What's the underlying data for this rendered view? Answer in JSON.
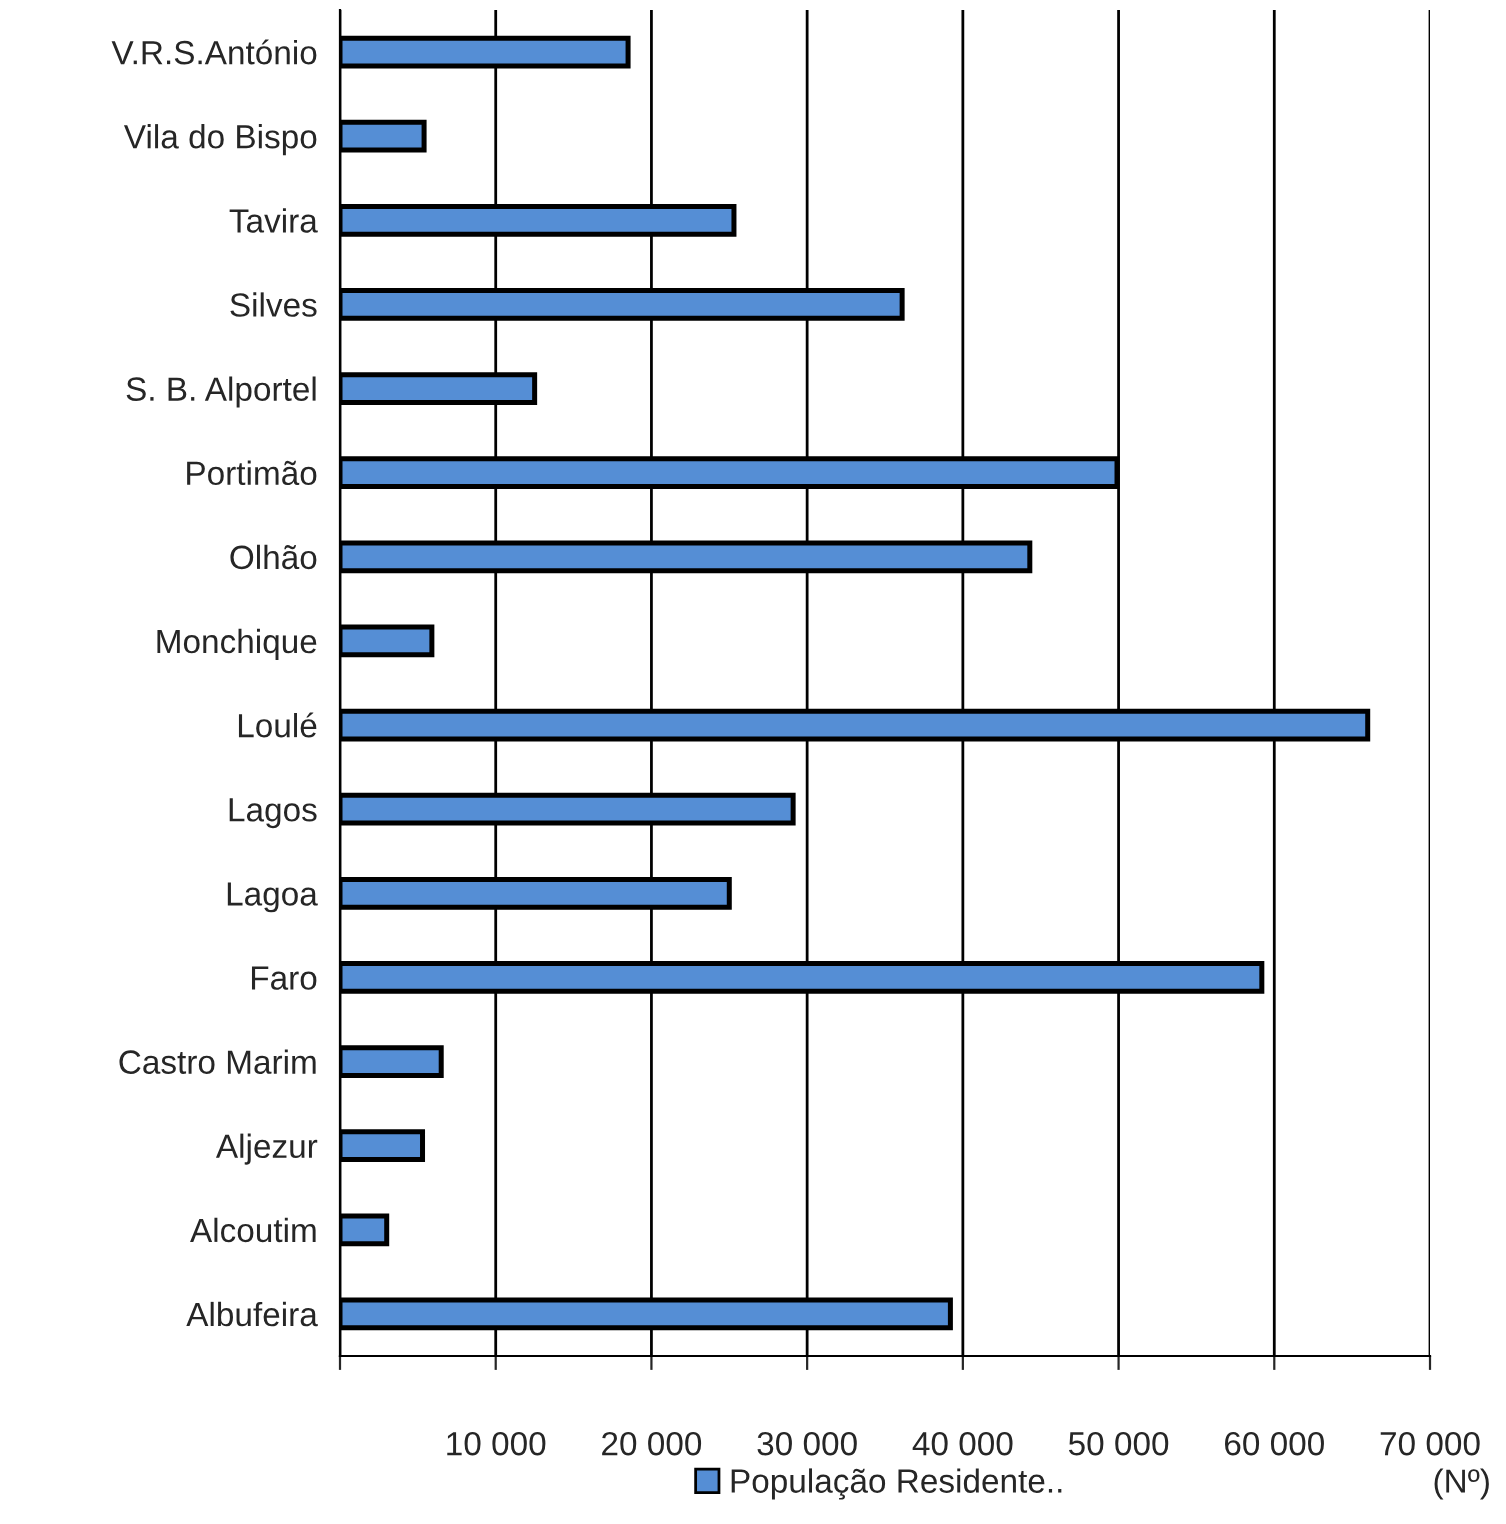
{
  "chart_data": {
    "type": "bar",
    "orientation": "horizontal",
    "categories": [
      "V.R.S.António",
      "Vila do Bispo",
      "Tavira",
      "Silves",
      "S. B. Alportel",
      "Portimão",
      "Olhão",
      "Monchique",
      "Loulé",
      "Lagos",
      "Lagoa",
      "Faro",
      "Castro Marim",
      "Aljezur",
      "Alcoutim",
      "Albufeira"
    ],
    "series": [
      {
        "name": "População Residente..",
        "color": "#558ed5",
        "values": [
          18500,
          5400,
          25300,
          36100,
          12500,
          49900,
          44300,
          5900,
          66000,
          29100,
          25000,
          59200,
          6500,
          5300,
          3000,
          39200
        ]
      }
    ],
    "xlim": [
      0,
      70000
    ],
    "xticks": [
      {
        "value": 0,
        "label": null
      },
      {
        "value": 10000,
        "label": "10 000"
      },
      {
        "value": 20000,
        "label": "20 000"
      },
      {
        "value": 30000,
        "label": "30 000"
      },
      {
        "value": 40000,
        "label": "40 000"
      },
      {
        "value": 50000,
        "label": "50 000"
      },
      {
        "value": 60000,
        "label": "60 000"
      },
      {
        "value": 70000,
        "label": "70 000"
      }
    ],
    "grid": "x",
    "legend": "bottom",
    "annotations": [
      "(Nº)"
    ]
  }
}
